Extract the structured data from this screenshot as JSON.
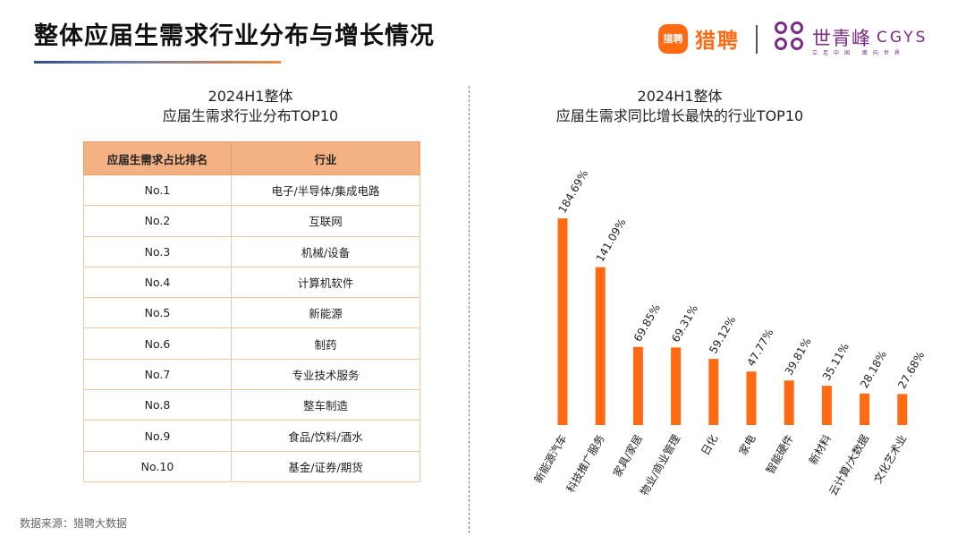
{
  "header": {
    "title": "整体应届生需求行业分布与增长情况",
    "logo_liepin_badge": "猎聘",
    "logo_liepin_name": "猎聘",
    "logo_cgys_cn": "世青峰",
    "logo_cgys_en": "CGYS",
    "logo_cgys_slogan": "立足中国 面向世界"
  },
  "left_panel": {
    "title_line1": "2024H1整体",
    "title_line2": "应届生需求行业分布TOP10",
    "table": {
      "header_color": "#f4b183",
      "columns": [
        "应届生需求占比排名",
        "行业"
      ],
      "rows": [
        [
          "No.1",
          "电子/半导体/集成电路"
        ],
        [
          "No.2",
          "互联网"
        ],
        [
          "No.3",
          "机械/设备"
        ],
        [
          "No.4",
          "计算机软件"
        ],
        [
          "No.5",
          "新能源"
        ],
        [
          "No.6",
          "制药"
        ],
        [
          "No.7",
          "专业技术服务"
        ],
        [
          "No.8",
          "整车制造"
        ],
        [
          "No.9",
          "食品/饮料/酒水"
        ],
        [
          "No.10",
          "基金/证券/期货"
        ]
      ]
    }
  },
  "right_panel": {
    "title_line1": "2024H1整体",
    "title_line2": "应届生需求同比增长最快的行业TOP10"
  },
  "footer": {
    "source": "数据来源：猎聘大数据"
  },
  "chart_data": {
    "type": "bar",
    "title": "",
    "xlabel": "",
    "ylabel": "",
    "ylim": [
      0,
      200
    ],
    "grid": false,
    "bar_color": "#ff6a13",
    "categories": [
      "新能源汽车",
      "科技推广服务",
      "家具/家居",
      "物业/商业管理",
      "日化",
      "家电",
      "智能硬件",
      "新材料",
      "云计算/大数据",
      "文化艺术业"
    ],
    "values": [
      184.69,
      141.09,
      69.85,
      69.31,
      59.12,
      47.77,
      39.81,
      35.11,
      28.18,
      27.68
    ],
    "data_labels": [
      "184.69%",
      "141.09%",
      "69.85%",
      "69.31%",
      "59.12%",
      "47.77%",
      "39.81%",
      "35.11%",
      "28.18%",
      "27.68%"
    ]
  }
}
